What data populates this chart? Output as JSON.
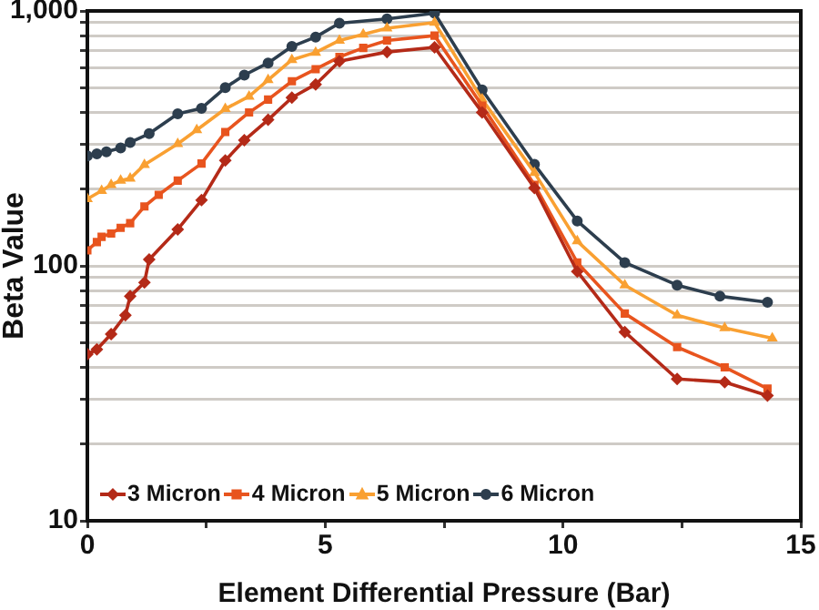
{
  "chart_data": {
    "type": "line",
    "xlabel": "Element Differential Pressure (Bar)",
    "ylabel": "Beta Value",
    "log": "y",
    "grid": "y",
    "legend": "bottom left",
    "xlim": [
      0,
      15
    ],
    "xticks": [
      0,
      {
        "value": 2.5,
        "label": null
      },
      5,
      {
        "value": 7.5,
        "label": null
      },
      10,
      {
        "value": 12.5,
        "label": null
      },
      15
    ],
    "ylim": [
      10,
      1000
    ],
    "yticks": [
      10,
      {
        "value": 20,
        "label": null
      },
      {
        "value": 30,
        "label": null
      },
      {
        "value": 40,
        "label": null
      },
      {
        "value": 50,
        "label": null
      },
      {
        "value": 60,
        "label": null
      },
      {
        "value": 70,
        "label": null
      },
      {
        "value": 80,
        "label": null
      },
      {
        "value": 90,
        "label": null
      },
      100,
      {
        "value": 200,
        "label": null
      },
      {
        "value": 300,
        "label": null
      },
      {
        "value": 400,
        "label": null
      },
      {
        "value": 500,
        "label": null
      },
      {
        "value": 600,
        "label": null
      },
      {
        "value": 700,
        "label": null
      },
      {
        "value": 800,
        "label": null
      },
      {
        "value": 900,
        "label": null
      },
      {
        "value": 1000,
        "label": "1,000"
      }
    ],
    "series": [
      {
        "name": "3 Micron",
        "color": "#b42a18",
        "marker": "diamond",
        "x": [
          0,
          0.2,
          0.5,
          0.8,
          0.9,
          1.2,
          1.3,
          1.9,
          2.4,
          2.9,
          3.3,
          3.8,
          4.3,
          4.8,
          5.3,
          6.3,
          7.3,
          8.3,
          9.4,
          10.3,
          11.3,
          12.4,
          13.4,
          14.3
        ],
        "values": [
          45,
          47,
          54,
          64,
          76,
          86,
          106,
          139,
          181,
          259,
          311,
          374,
          457,
          515,
          635,
          690,
          720,
          400,
          202,
          95,
          55,
          36,
          35,
          31
        ]
      },
      {
        "name": "4 Micron",
        "color": "#e8541e",
        "marker": "square",
        "x": [
          0,
          0.2,
          0.3,
          0.5,
          0.7,
          0.9,
          1.2,
          1.5,
          1.9,
          2.4,
          2.9,
          3.4,
          3.8,
          4.3,
          4.8,
          5.3,
          5.8,
          6.3,
          7.3,
          8.3,
          9.4,
          10.3,
          11.3,
          12.4,
          13.4,
          14.3
        ],
        "values": [
          115,
          124,
          130,
          134,
          141,
          147,
          171,
          190,
          216,
          252,
          335,
          400,
          449,
          530,
          591,
          660,
          716,
          766,
          800,
          425,
          208,
          103,
          65,
          48,
          40,
          33
        ]
      },
      {
        "name": "5 Micron",
        "color": "#f9a032",
        "marker": "triangle",
        "x": [
          0,
          0.3,
          0.5,
          0.7,
          0.9,
          1.2,
          1.9,
          2.3,
          2.9,
          3.4,
          3.8,
          4.3,
          4.8,
          5.3,
          5.8,
          6.3,
          7.3,
          8.3,
          9.4,
          10.3,
          11.3,
          12.4,
          13.4,
          14.4
        ],
        "values": [
          183,
          197,
          208,
          216,
          220,
          249,
          301,
          341,
          413,
          462,
          536,
          643,
          687,
          766,
          809,
          855,
          900,
          450,
          232,
          125,
          84,
          64,
          57,
          52
        ]
      },
      {
        "name": "6 Micron",
        "color": "#2d3e4e",
        "marker": "circle",
        "x": [
          0,
          0.2,
          0.4,
          0.7,
          0.9,
          1.3,
          1.9,
          2.4,
          2.9,
          3.3,
          3.8,
          4.3,
          4.8,
          5.3,
          6.3,
          7.3,
          8.3,
          9.4,
          10.3,
          11.3,
          12.4,
          13.3,
          14.3
        ],
        "values": [
          270,
          275,
          280,
          290,
          305,
          330,
          395,
          415,
          500,
          560,
          625,
          725,
          790,
          895,
          930,
          980,
          490,
          250,
          150,
          103,
          84,
          76,
          72
        ]
      }
    ]
  }
}
